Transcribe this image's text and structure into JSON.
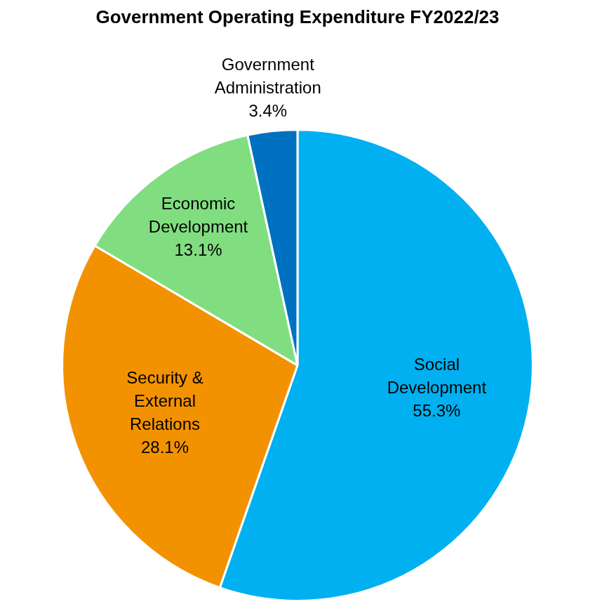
{
  "chart_data": {
    "type": "pie",
    "title": "Government Operating Expenditure FY2022/23",
    "categories": [
      "Social Development",
      "Security & External Relations",
      "Economic Development",
      "Government Administration"
    ],
    "values": [
      55.3,
      28.1,
      13.1,
      3.4
    ],
    "value_labels": [
      "55.3%",
      "28.1%",
      "13.1%",
      "3.4%"
    ],
    "colors": [
      "#00b0f0",
      "#f39200",
      "#80de80",
      "#0070c0"
    ],
    "data_labels": true
  }
}
